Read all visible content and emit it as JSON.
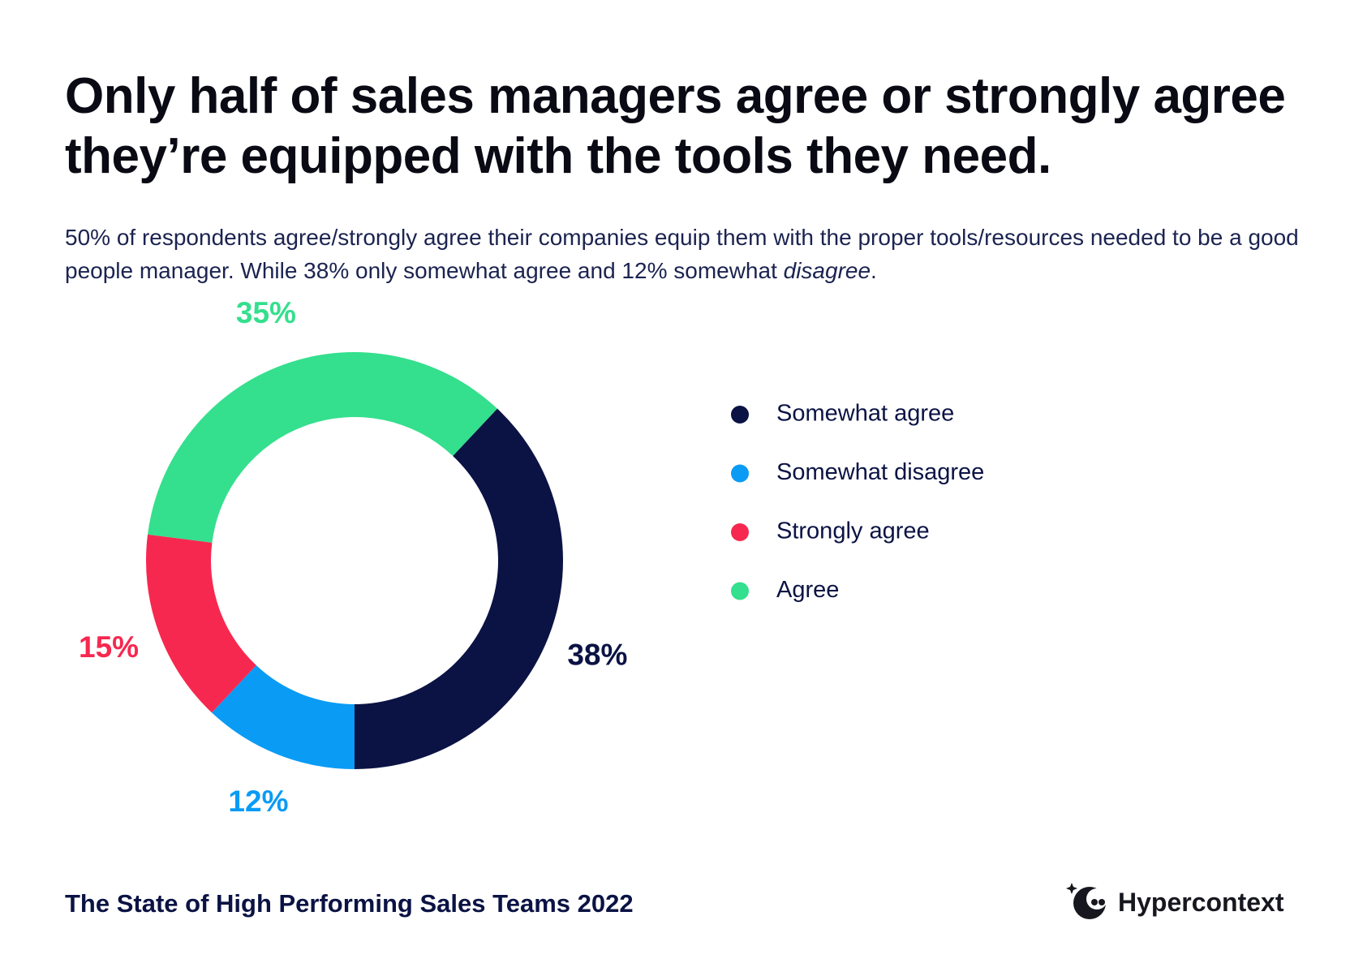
{
  "chart_data": {
    "type": "donut",
    "title": "Only half of sales managers agree or strongly agree they’re equipped with the tools they need.",
    "subtitle_parts": [
      "50% of respondents agree/strongly agree their companies equip them with the proper tools/resources needed to be a good people manager. While 38% only somewhat agree and 12% somewhat ",
      "disagree",
      "."
    ],
    "categories": [
      "Somewhat agree",
      "Somewhat disagree",
      "Strongly agree",
      "Agree"
    ],
    "values": [
      38,
      12,
      15,
      35
    ],
    "value_labels": [
      "38%",
      "12%",
      "15%",
      "35%"
    ],
    "colors": [
      "#0b1344",
      "#0a9bf5",
      "#f7284f",
      "#34df8d"
    ],
    "footer": "The State of High Performing Sales Teams 2022",
    "brand": "Hypercontext"
  }
}
